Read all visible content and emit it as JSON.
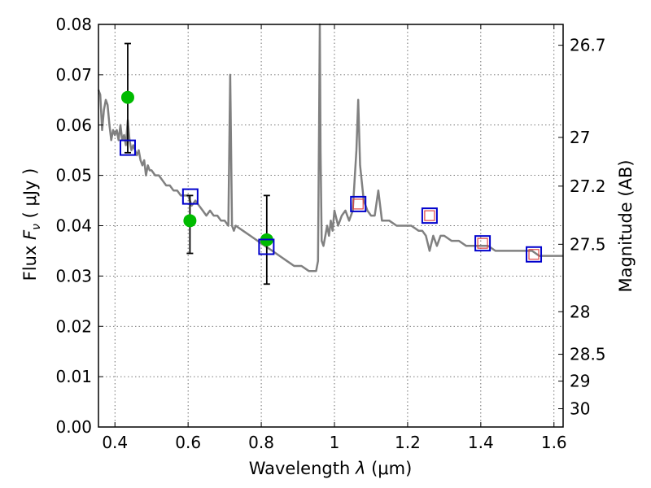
{
  "chart_data": {
    "type": "scatter",
    "title": "",
    "xlabel": "Wavelength  λ (μm)",
    "ylabel": "Flux  F_ν  ( μJy )",
    "ylabel_parts": {
      "prefix": "Flux  ",
      "symbol": "F",
      "subscript": "ν",
      "suffix": "  ( μJy )"
    },
    "xlabel_parts": {
      "prefix": "Wavelength  ",
      "symbol": "λ",
      "suffix": " (μm)"
    },
    "y2label": "Magnitude (AB)",
    "xlim": [
      0.355,
      1.625
    ],
    "ylim": [
      0.0,
      0.08
    ],
    "x_ticks": [
      0.4,
      0.6,
      0.8,
      1.0,
      1.2,
      1.4,
      1.6
    ],
    "x_tick_labels": [
      "0.4",
      "0.6",
      "0.8",
      "1",
      "1.2",
      "1.4",
      "1.6"
    ],
    "y_ticks": [
      0.0,
      0.01,
      0.02,
      0.03,
      0.04,
      0.05,
      0.06,
      0.07,
      0.08
    ],
    "y_tick_labels": [
      "0.00",
      "0.01",
      "0.02",
      "0.03",
      "0.04",
      "0.05",
      "0.06",
      "0.07",
      "0.08"
    ],
    "y2_ticks": [
      {
        "label": "26.7",
        "mag": 26.7
      },
      {
        "label": "27",
        "mag": 27.0
      },
      {
        "label": "27.2",
        "mag": 27.2
      },
      {
        "label": "27.5",
        "mag": 27.5
      },
      {
        "label": "28",
        "mag": 28.0
      },
      {
        "label": "28.5",
        "mag": 28.5
      },
      {
        "label": "29",
        "mag": 29.0
      },
      {
        "label": "30",
        "mag": 30.0
      }
    ],
    "grid": true,
    "colors": {
      "model_line": "#808080",
      "observed_points": "#00bb00",
      "model_boxes": "#0000cc",
      "model_inner_boxes": "#dd4444",
      "error_bars": "#000000"
    },
    "series": [
      {
        "kind": "line",
        "x": [
          0.355,
          0.36,
          0.365,
          0.37,
          0.375,
          0.38,
          0.385,
          0.39,
          0.395,
          0.4,
          0.405,
          0.41,
          0.415,
          0.42,
          0.425,
          0.43,
          0.435,
          0.44,
          0.445,
          0.45,
          0.455,
          0.46,
          0.465,
          0.47,
          0.475,
          0.48,
          0.485,
          0.49,
          0.495,
          0.5,
          0.51,
          0.52,
          0.53,
          0.54,
          0.55,
          0.56,
          0.57,
          0.58,
          0.59,
          0.6,
          0.61,
          0.62,
          0.63,
          0.64,
          0.65,
          0.66,
          0.67,
          0.68,
          0.69,
          0.7,
          0.71,
          0.715,
          0.72,
          0.725,
          0.73,
          0.75,
          0.77,
          0.79,
          0.81,
          0.83,
          0.85,
          0.87,
          0.89,
          0.91,
          0.93,
          0.95,
          0.955,
          0.958,
          0.96,
          0.962,
          0.965,
          0.97,
          0.975,
          0.98,
          0.985,
          0.99,
          0.995,
          1.0,
          1.01,
          1.02,
          1.03,
          1.04,
          1.05,
          1.06,
          1.065,
          1.07,
          1.08,
          1.09,
          1.1,
          1.11,
          1.12,
          1.13,
          1.15,
          1.17,
          1.19,
          1.21,
          1.23,
          1.24,
          1.25,
          1.26,
          1.27,
          1.28,
          1.29,
          1.3,
          1.32,
          1.34,
          1.36,
          1.38,
          1.4,
          1.42,
          1.44,
          1.46,
          1.48,
          1.5,
          1.52,
          1.54,
          1.56,
          1.58,
          1.6,
          1.625
        ],
        "y": [
          0.067,
          0.066,
          0.059,
          0.063,
          0.065,
          0.064,
          0.06,
          0.057,
          0.059,
          0.058,
          0.059,
          0.057,
          0.06,
          0.057,
          0.058,
          0.056,
          0.061,
          0.057,
          0.055,
          0.056,
          0.055,
          0.054,
          0.055,
          0.053,
          0.052,
          0.053,
          0.05,
          0.052,
          0.051,
          0.051,
          0.05,
          0.05,
          0.049,
          0.048,
          0.048,
          0.047,
          0.047,
          0.046,
          0.046,
          0.046,
          0.044,
          0.045,
          0.044,
          0.043,
          0.042,
          0.043,
          0.042,
          0.042,
          0.041,
          0.041,
          0.04,
          0.07,
          0.04,
          0.039,
          0.04,
          0.039,
          0.038,
          0.037,
          0.036,
          0.035,
          0.034,
          0.033,
          0.032,
          0.032,
          0.031,
          0.031,
          0.033,
          0.06,
          0.082,
          0.055,
          0.037,
          0.036,
          0.038,
          0.04,
          0.038,
          0.041,
          0.039,
          0.043,
          0.04,
          0.042,
          0.043,
          0.041,
          0.043,
          0.055,
          0.065,
          0.052,
          0.045,
          0.043,
          0.042,
          0.042,
          0.047,
          0.041,
          0.041,
          0.04,
          0.04,
          0.04,
          0.039,
          0.039,
          0.038,
          0.035,
          0.038,
          0.036,
          0.038,
          0.038,
          0.037,
          0.037,
          0.036,
          0.036,
          0.036,
          0.036,
          0.035,
          0.035,
          0.035,
          0.035,
          0.035,
          0.035,
          0.034,
          0.034,
          0.034,
          0.034
        ]
      },
      {
        "kind": "observed",
        "x": [
          0.435,
          0.605,
          0.815
        ],
        "y": [
          0.0655,
          0.041,
          0.0372
        ],
        "yerr_low": [
          0.0545,
          0.0345,
          0.0284
        ],
        "yerr_high": [
          0.0762,
          0.046,
          0.046
        ]
      },
      {
        "kind": "model_bands",
        "x": [
          0.435,
          0.606,
          0.814,
          1.065,
          1.26,
          1.405,
          1.545
        ],
        "y": [
          0.0555,
          0.0458,
          0.0358,
          0.0443,
          0.042,
          0.0365,
          0.0343
        ]
      },
      {
        "kind": "model_bands_inner",
        "x": [
          1.065,
          1.26,
          1.405,
          1.545
        ],
        "y": [
          0.0443,
          0.042,
          0.0365,
          0.0343
        ]
      }
    ]
  }
}
